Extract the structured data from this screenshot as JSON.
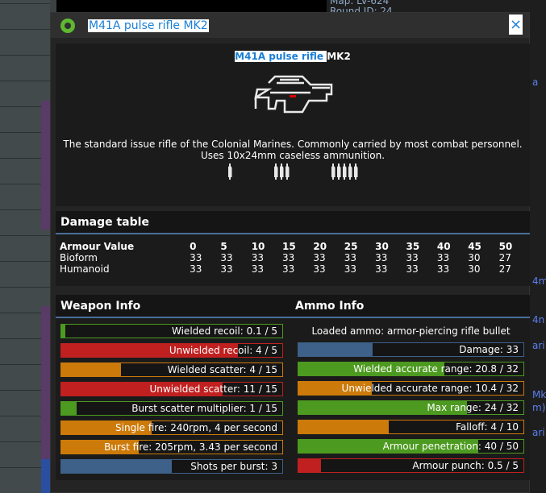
{
  "background": {
    "chat": [
      "Map: LV-624",
      "Round ID: 24"
    ],
    "chat_side": [
      "a",
      "4m",
      "4n",
      "ari",
      "Mk",
      "m)",
      "ari"
    ]
  },
  "window": {
    "title": "M41A pulse rifle MK2",
    "close": "×",
    "icon": "eye-icon"
  },
  "item": {
    "name_highlight": "M41A pulse rifle ",
    "name_rest": "MK2",
    "description_1": "The standard issue rifle of the Colonial Marines. Commonly carried by most combat personnel.",
    "description_2": "Uses 10x24mm caseless ammunition.",
    "fire_mode_icons": [
      1,
      3,
      5
    ]
  },
  "damage_table": {
    "title": "Damage table",
    "header_label": "Armour Value",
    "armour": [
      "0",
      "5",
      "10",
      "15",
      "20",
      "25",
      "30",
      "35",
      "40",
      "45",
      "50"
    ],
    "rows": [
      {
        "label": "Bioform",
        "values": [
          "33",
          "33",
          "33",
          "33",
          "33",
          "33",
          "33",
          "33",
          "33",
          "30",
          "27"
        ]
      },
      {
        "label": "Humanoid",
        "values": [
          "33",
          "33",
          "33",
          "33",
          "33",
          "33",
          "33",
          "33",
          "33",
          "30",
          "27"
        ]
      }
    ]
  },
  "colors": {
    "green": "#4c9a1f",
    "red": "#c02020",
    "orange": "#cc7a0a",
    "blue": "#3e6189"
  },
  "weapon_info": {
    "title": "Weapon Info",
    "bars": [
      {
        "label": "Wielded recoil: 0.1 / 5",
        "fill": 0.02,
        "color": "green"
      },
      {
        "label": "Unwielded recoil: 4 / 5",
        "fill": 0.8,
        "color": "red"
      },
      {
        "label": "Wielded scatter: 4 / 15",
        "fill": 0.27,
        "color": "orange"
      },
      {
        "label": "Unwielded scatter: 11 / 15",
        "fill": 0.73,
        "color": "red"
      },
      {
        "label": "Burst scatter multiplier: 1 / 15",
        "fill": 0.07,
        "color": "green"
      },
      {
        "label": "Single fire: 240rpm, 4 per second",
        "fill": 0.41,
        "color": "orange"
      },
      {
        "label": "Burst fire: 205rpm, 3.43 per second",
        "fill": 0.35,
        "color": "orange"
      },
      {
        "label": "Shots per burst: 3",
        "fill": 0.5,
        "color": "blue"
      }
    ]
  },
  "ammo_info": {
    "title": "Ammo Info",
    "loaded": "Loaded ammo: armor-piercing rifle bullet",
    "bars": [
      {
        "label": "Damage: 33",
        "fill": 0.33,
        "color": "blue"
      },
      {
        "label": "Wielded accurate range: 20.8 / 32",
        "fill": 0.65,
        "color": "green"
      },
      {
        "label": "Unwielded accurate range: 10.4 / 32",
        "fill": 0.325,
        "color": "orange"
      },
      {
        "label": "Max range: 24 / 32",
        "fill": 0.75,
        "color": "green"
      },
      {
        "label": "Falloff: 4 / 10",
        "fill": 0.4,
        "color": "orange"
      },
      {
        "label": "Armour penetration: 40 / 50",
        "fill": 0.8,
        "color": "green"
      },
      {
        "label": "Armour punch: 0.5 / 5",
        "fill": 0.1,
        "color": "red"
      }
    ]
  }
}
